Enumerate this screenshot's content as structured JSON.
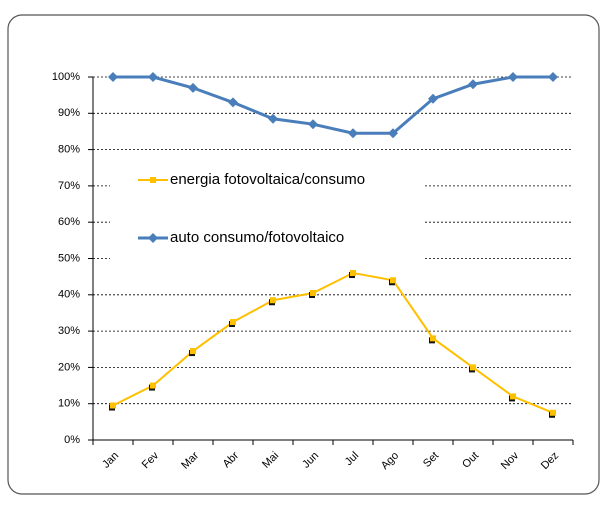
{
  "chart_data": {
    "type": "line",
    "categories": [
      "Jan",
      "Fev",
      "Mar",
      "Abr",
      "Mai",
      "Jun",
      "Jul",
      "Ago",
      "Set",
      "Out",
      "Nov",
      "Dez"
    ],
    "series": [
      {
        "name": "energia fotovoltaica/consumo",
        "color": "#ffc000",
        "values": [
          9.5,
          15,
          24.5,
          32.5,
          38.5,
          40.5,
          46,
          44,
          28,
          20,
          12,
          7.5
        ]
      },
      {
        "name": "auto consumo/fotovoltaico",
        "color": "#4a7ebb",
        "values": [
          100,
          100,
          97,
          93,
          88.5,
          87,
          84.5,
          84.5,
          94,
          98,
          100,
          100
        ]
      }
    ],
    "ylim": [
      0,
      100
    ],
    "yticks": [
      {
        "value": 0,
        "label": "0%"
      },
      {
        "value": 10,
        "label": "10%"
      },
      {
        "value": 20,
        "label": "20%"
      },
      {
        "value": 30,
        "label": "30%"
      },
      {
        "value": 40,
        "label": "40%"
      },
      {
        "value": 50,
        "label": "50%"
      },
      {
        "value": 60,
        "label": "60%"
      },
      {
        "value": 70,
        "label": "70%"
      },
      {
        "value": 80,
        "label": "80%"
      },
      {
        "value": 90,
        "label": "90%"
      },
      {
        "value": 100,
        "label": "100%"
      }
    ],
    "grid": true
  }
}
